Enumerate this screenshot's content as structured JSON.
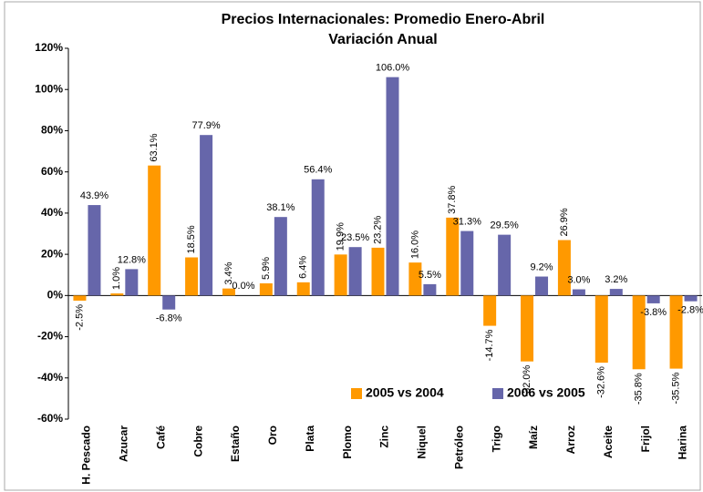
{
  "chart_data": {
    "type": "bar",
    "title": "Precios  Internacionales:  Promedio Enero-Abril",
    "subtitle": "Variación Anual",
    "categories": [
      "H. Pescado",
      "Azucar",
      "Café",
      "Cobre",
      "Estaño",
      "Oro",
      "Plata",
      "Plomo",
      "Zinc",
      "Niquel",
      "Petróleo",
      "Trigo",
      "Maíz",
      "Arroz",
      "Aceite",
      "Frijol",
      "Harina"
    ],
    "series": [
      {
        "name": "2005 vs 2004",
        "color": "#ff9900",
        "values": [
          -2.5,
          1.0,
          63.1,
          18.5,
          3.4,
          5.9,
          6.4,
          19.9,
          23.2,
          16.0,
          37.8,
          -14.7,
          -32.0,
          26.9,
          -32.6,
          -35.8,
          -35.5
        ],
        "value_labels": [
          "-2.5%",
          "1.0%",
          "63.1%",
          "18.5%",
          "3.4%",
          "5.9%",
          "6.4%",
          "19.9%",
          "23.2%",
          "16.0%",
          "37.8%",
          "-14.7%",
          "-32.0%",
          "26.9%",
          "-32.6%",
          "-35.8%",
          "-35.5%"
        ]
      },
      {
        "name": "2006 vs 2005",
        "color": "#6666aa",
        "values": [
          43.9,
          12.8,
          -6.8,
          77.9,
          0.0,
          38.1,
          56.4,
          23.5,
          106.0,
          5.5,
          31.3,
          29.5,
          9.2,
          3.0,
          3.2,
          -3.8,
          -2.8
        ],
        "value_labels": [
          "43.9%",
          "12.8%",
          "-6.8%",
          "77.9%",
          "0.0%",
          "38.1%",
          "56.4%",
          "23.5%",
          "106.0%",
          "5.5%",
          "31.3%",
          "29.5%",
          "9.2%",
          "3.0%",
          "3.2%",
          "-3.8%",
          "-2.8%"
        ]
      }
    ],
    "ylim": [
      -60,
      120
    ],
    "yticks": [
      {
        "value": -60,
        "label": "-60%"
      },
      {
        "value": -40,
        "label": "-40%"
      },
      {
        "value": -20,
        "label": "-20%"
      },
      {
        "value": 0,
        "label": "0%"
      },
      {
        "value": 20,
        "label": "20%"
      },
      {
        "value": 40,
        "label": "40%"
      },
      {
        "value": 60,
        "label": "60%"
      },
      {
        "value": 80,
        "label": "80%"
      },
      {
        "value": 100,
        "label": "100%"
      },
      {
        "value": 120,
        "label": "120%"
      }
    ],
    "grid": false
  }
}
